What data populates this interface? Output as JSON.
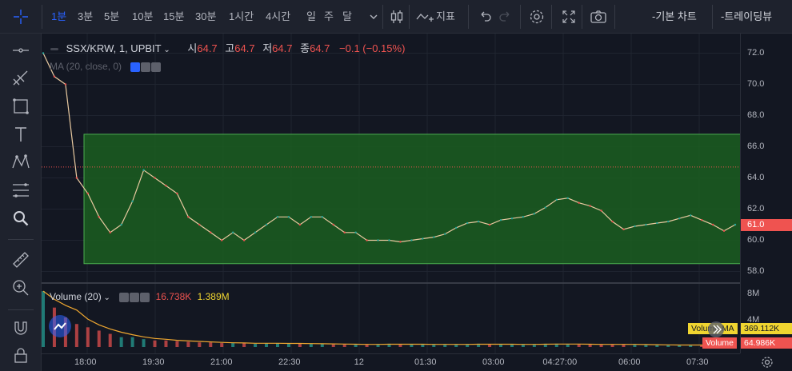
{
  "toolbar": {
    "intervals": [
      "1분",
      "3분",
      "5분",
      "10분",
      "15분",
      "30분",
      "1시간",
      "4시간",
      "일",
      "주",
      "달"
    ],
    "active_interval": "1분",
    "indicators_label": "지표",
    "basic_chart_label": "-기본 차트",
    "tradingview_label": "-트레이딩뷰"
  },
  "legend": {
    "symbol": "SSX/KRW, 1, UPBIT",
    "open_label": "시",
    "open": "64.7",
    "high_label": "고",
    "high": "64.7",
    "low_label": "저",
    "low": "64.7",
    "close_label": "종",
    "close": "64.7",
    "change": "−0.1 (−0.15%)",
    "ma": "MA (20, close, 0)",
    "volume_label": "Volume (20)",
    "volume_value": "16.738K",
    "volume_ma_value": "1.389M"
  },
  "price_axis": {
    "ticks": [
      "72.0",
      "70.0",
      "68.0",
      "66.0",
      "64.0",
      "62.0",
      "60.0",
      "58.0"
    ],
    "current_price": "61.0",
    "volume_ticks": [
      "8M",
      "4M"
    ],
    "volume_ma_label": "Volume MA",
    "volume_ma_tag": "369.112K",
    "volume_tag_label": "Volume",
    "volume_tag": "64.986K"
  },
  "time_axis": {
    "ticks": [
      "18:00",
      "19:30",
      "21:00",
      "22:30",
      "12",
      "01:30",
      "03:00",
      "04:27:00",
      "06:00",
      "07:30"
    ]
  },
  "chart_data": {
    "type": "line",
    "title": "SSX/KRW, 1, UPBIT",
    "xlabel": "",
    "ylabel": "",
    "ylim": [
      57,
      73
    ],
    "x": [
      "17:00",
      "17:15",
      "17:30",
      "17:45",
      "18:00",
      "18:15",
      "18:30",
      "18:45",
      "19:00",
      "19:15",
      "19:30",
      "19:45",
      "20:00",
      "20:15",
      "20:30",
      "20:45",
      "21:00",
      "21:15",
      "21:30",
      "21:45",
      "22:00",
      "22:15",
      "22:30",
      "22:45",
      "23:00",
      "23:15",
      "23:30",
      "23:45",
      "00:00",
      "00:15",
      "00:30",
      "00:45",
      "01:00",
      "01:15",
      "01:30",
      "01:45",
      "02:00",
      "02:15",
      "02:30",
      "02:45",
      "03:00",
      "03:15",
      "03:30",
      "03:45",
      "04:00",
      "04:15",
      "04:30",
      "04:45",
      "05:00",
      "05:15",
      "05:30",
      "05:45",
      "06:00",
      "06:15",
      "06:30",
      "06:45",
      "07:00",
      "07:15",
      "07:30",
      "07:45",
      "08:00",
      "08:15",
      "08:30"
    ],
    "series": [
      {
        "values": [
          72.0,
          70.5,
          70.0,
          64.0,
          63.0,
          61.5,
          60.5,
          61.0,
          62.5,
          64.5,
          64.0,
          63.5,
          63.0,
          61.5,
          61.0,
          60.5,
          60.0,
          60.5,
          60.0,
          60.5,
          61.0,
          61.5,
          61.5,
          61.0,
          61.5,
          61.5,
          61.0,
          60.5,
          60.5,
          60.0,
          60.0,
          60.0,
          59.9,
          60.0,
          60.1,
          60.2,
          60.4,
          60.8,
          61.1,
          61.2,
          61.0,
          61.3,
          61.4,
          61.5,
          61.7,
          62.1,
          62.6,
          62.7,
          62.4,
          62.2,
          61.9,
          61.2,
          60.7,
          60.9,
          61.0,
          61.1,
          61.2,
          61.4,
          61.6,
          61.3,
          61.0,
          60.6,
          61.0
        ]
      }
    ],
    "volume": [
      8.5,
      6.0,
      4.5,
      3.5,
      3.0,
      2.5,
      2.0,
      1.5,
      1.5,
      1.2,
      1.0,
      1.0,
      0.9,
      0.8,
      0.7,
      0.7,
      0.6,
      0.6,
      0.6,
      0.5,
      0.6,
      0.6,
      0.5,
      0.5,
      0.5,
      0.5,
      0.4,
      0.4,
      0.4,
      0.4,
      0.4,
      0.5,
      0.4,
      0.4,
      0.4,
      0.4,
      0.4,
      0.4,
      0.4,
      0.5,
      0.4,
      0.4,
      0.4,
      0.4,
      0.4,
      0.5,
      0.5,
      0.4,
      0.4,
      0.4,
      0.4,
      0.4,
      0.4,
      0.4,
      0.3,
      0.3,
      0.3,
      0.3,
      0.3,
      0.3,
      0.3,
      0.3,
      0.3
    ],
    "volume_ylim": [
      0,
      9
    ],
    "range_box": {
      "price_top": 66.8,
      "price_bottom": 58.5
    },
    "dotted_line_price": 64.7,
    "colors": {
      "up": "#26a69a",
      "down": "#ef5350",
      "line": "#e8c9a0",
      "box_fill": "#1b5e20",
      "box_border": "#4caf50",
      "vol_ma": "#f0a830",
      "accent": "#2962ff"
    }
  }
}
